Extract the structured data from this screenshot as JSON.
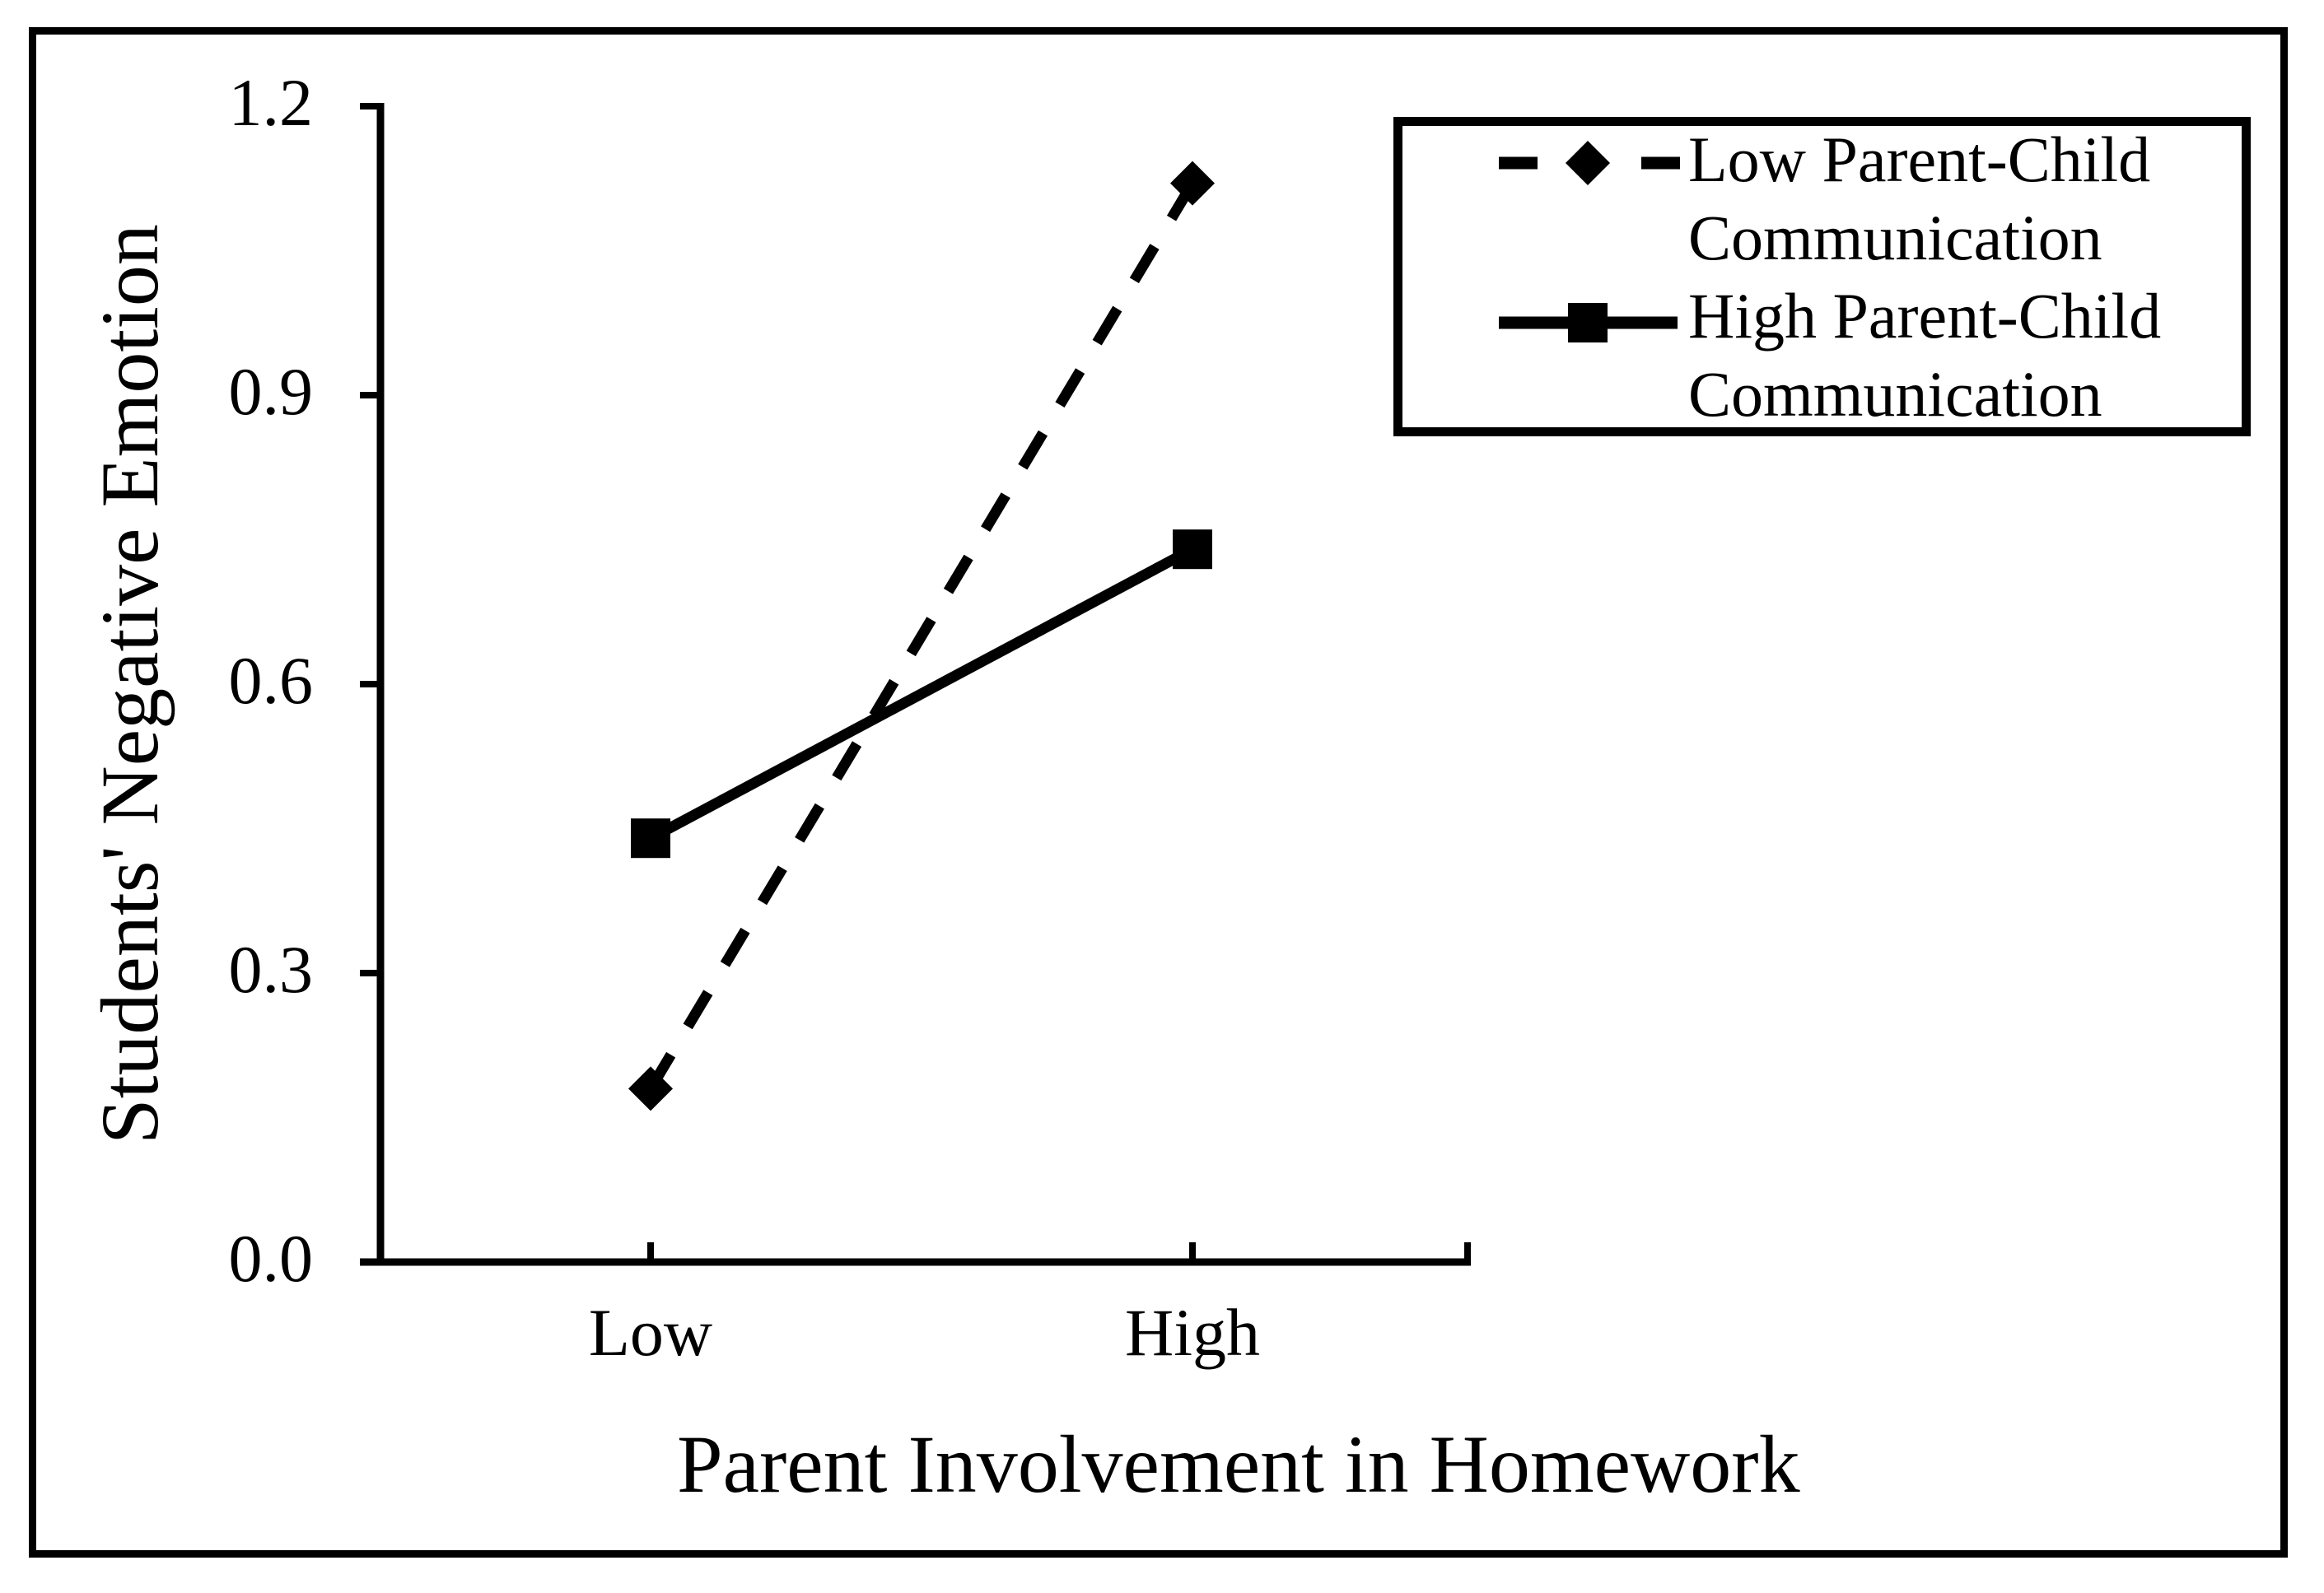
{
  "chart_data": {
    "type": "line",
    "title": "",
    "xlabel": "Parent Involvement in Homework",
    "ylabel": "Students' Negative Emotion",
    "categories": [
      "Low",
      "High"
    ],
    "ylim": [
      0.0,
      1.2
    ],
    "y_tick_labels_top_to_bottom": [
      "1.2",
      "0.9",
      "0.6",
      "0.3",
      "0.0"
    ],
    "y_tick_step": 0.3,
    "grid": false,
    "legend_position": "top-right-inside",
    "series": [
      {
        "name": "Low Parent-Child Communication",
        "values": [
          0.18,
          1.12
        ],
        "line_style": "dashed",
        "marker": "diamond",
        "color": "#000000"
      },
      {
        "name": "High Parent-Child Communication",
        "values": [
          0.44,
          0.74
        ],
        "line_style": "solid",
        "marker": "square",
        "color": "#000000"
      }
    ]
  },
  "legend": {
    "entries": [
      {
        "line1": "Low Parent-Child",
        "line2": "Communication"
      },
      {
        "line1": "High Parent-Child",
        "line2": "Communication"
      }
    ]
  },
  "colors": {
    "foreground": "#000000",
    "background": "#ffffff"
  }
}
